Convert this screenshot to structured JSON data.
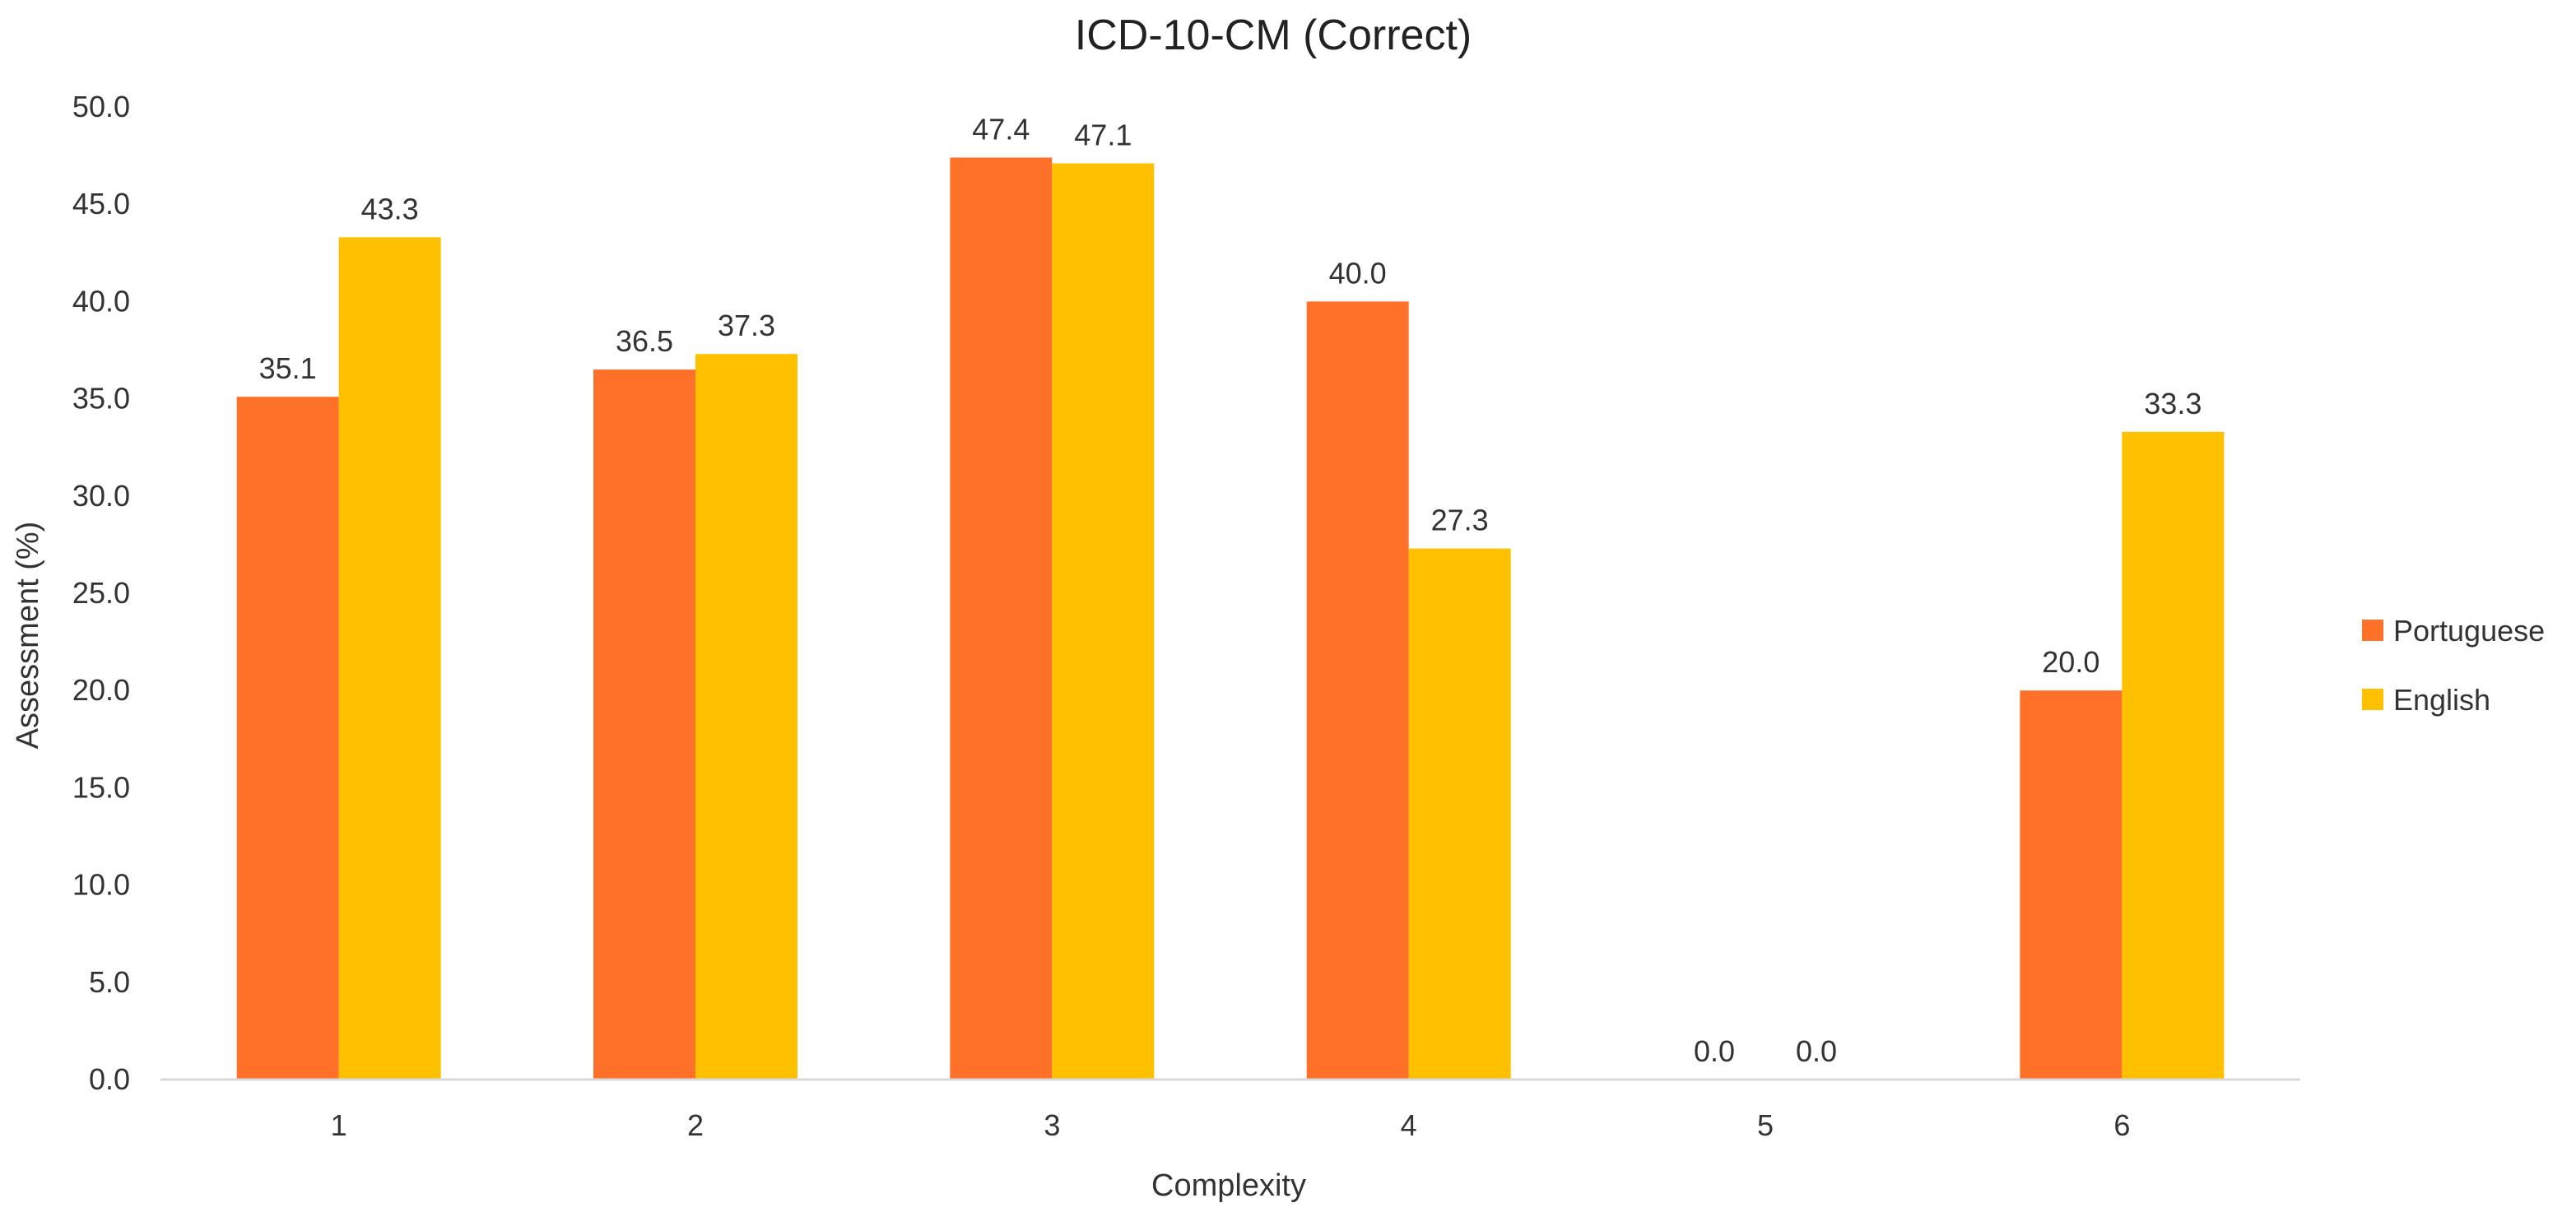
{
  "chart_data": {
    "type": "bar",
    "title": "ICD-10-CM (Correct)",
    "xlabel": "Complexity",
    "ylabel": "Assessment (%)",
    "categories": [
      "1",
      "2",
      "3",
      "4",
      "5",
      "6"
    ],
    "ylim": [
      0,
      50
    ],
    "yticks": [
      "0.0",
      "5.0",
      "10.0",
      "15.0",
      "20.0",
      "25.0",
      "30.0",
      "35.0",
      "40.0",
      "45.0",
      "50.0"
    ],
    "series": [
      {
        "name": "Portuguese",
        "color": "#FF7029",
        "values": [
          35.1,
          36.5,
          47.4,
          40.0,
          0.0,
          20.0
        ],
        "labels": [
          "35.1",
          "36.5",
          "47.4",
          "40.0",
          "0.0",
          "20.0"
        ]
      },
      {
        "name": "English",
        "color": "#FFC000",
        "values": [
          43.3,
          37.3,
          47.1,
          27.3,
          0.0,
          33.3
        ],
        "labels": [
          "43.3",
          "37.3",
          "47.1",
          "27.3",
          "0.0",
          "33.3"
        ]
      }
    ],
    "legend": "right",
    "grid": false
  }
}
